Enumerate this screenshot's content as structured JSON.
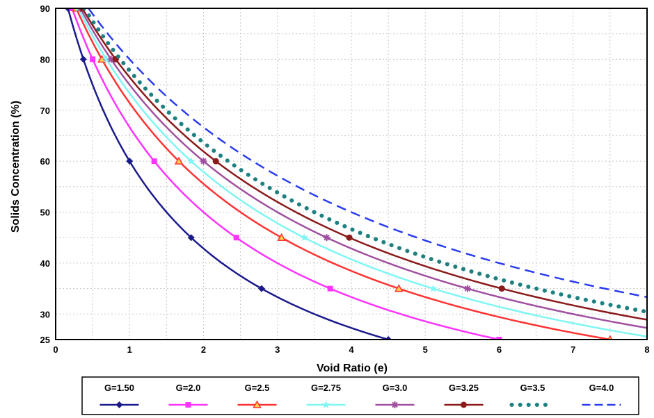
{
  "chart_data": {
    "type": "line",
    "title": "",
    "xlabel": "Void Ratio (e)",
    "ylabel": "Solids Concentration (%)",
    "xlim": [
      0,
      8
    ],
    "ylim": [
      25,
      90
    ],
    "x_ticks": [
      0,
      1,
      2,
      3,
      4,
      5,
      6,
      7,
      8
    ],
    "y_ticks": [
      25,
      30,
      40,
      50,
      60,
      70,
      80,
      90
    ],
    "grid": true,
    "legend_position": "bottom",
    "marker_y": [
      80,
      60,
      45,
      35,
      25
    ],
    "series": [
      {
        "name": "G=1.50",
        "G": 1.5,
        "color": "#1a1a8c",
        "dash": "",
        "marker": "diamond",
        "width": 2.5
      },
      {
        "name": "G=2.0",
        "G": 2.0,
        "color": "#ff33ff",
        "dash": "",
        "marker": "square",
        "width": 2.5
      },
      {
        "name": "G=2.5",
        "G": 2.5,
        "color": "#ff3333",
        "dash": "",
        "marker": "triangle",
        "width": 2.5
      },
      {
        "name": "G=2.75",
        "G": 2.75,
        "color": "#7ff5f5",
        "dash": "",
        "marker": "star",
        "width": 2.5
      },
      {
        "name": "G=3.0",
        "G": 3.0,
        "color": "#a050a0",
        "dash": "",
        "marker": "asterisk",
        "width": 2.5
      },
      {
        "name": "G=3.25",
        "G": 3.25,
        "color": "#8b1a1a",
        "dash": "",
        "marker": "circle",
        "width": 2.5
      },
      {
        "name": "G=3.5",
        "G": 3.5,
        "color": "#1f8080",
        "dash": "dots",
        "marker": "",
        "width": 6
      },
      {
        "name": "G=4.0",
        "G": 4.0,
        "color": "#2a3cf0",
        "dash": "dashed",
        "marker": "",
        "width": 2.5
      }
    ]
  }
}
